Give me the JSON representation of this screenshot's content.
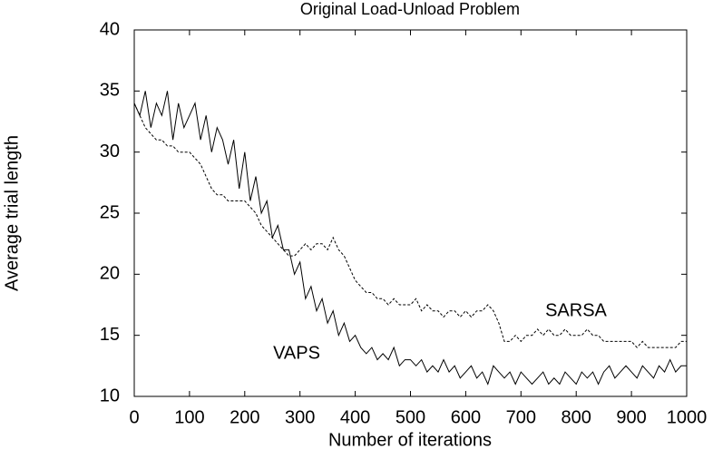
{
  "chart_data": {
    "type": "line",
    "title": "Original Load-Unload Problem",
    "x_label": "Number of iterations",
    "y_label": "Average trial length",
    "xlim": [
      0,
      1000
    ],
    "ylim": [
      10,
      40
    ],
    "xticks": [
      0,
      100,
      200,
      300,
      400,
      500,
      600,
      700,
      800,
      900,
      1000
    ],
    "yticks": [
      10,
      15,
      20,
      25,
      30,
      35,
      40
    ],
    "x": [
      0,
      10,
      20,
      30,
      40,
      50,
      60,
      70,
      80,
      90,
      100,
      110,
      120,
      130,
      140,
      150,
      160,
      170,
      180,
      190,
      200,
      210,
      220,
      230,
      240,
      250,
      260,
      270,
      280,
      290,
      300,
      310,
      320,
      330,
      340,
      350,
      360,
      370,
      380,
      390,
      400,
      410,
      420,
      430,
      440,
      450,
      460,
      470,
      480,
      490,
      500,
      510,
      520,
      530,
      540,
      550,
      560,
      570,
      580,
      590,
      600,
      610,
      620,
      630,
      640,
      650,
      660,
      670,
      680,
      690,
      700,
      710,
      720,
      730,
      740,
      750,
      760,
      770,
      780,
      790,
      800,
      810,
      820,
      830,
      840,
      850,
      860,
      870,
      880,
      890,
      900,
      910,
      920,
      930,
      940,
      950,
      960,
      970,
      980,
      990,
      1000
    ],
    "series": [
      {
        "name": "SARSA",
        "color": "#000000",
        "dash": "3 2",
        "values": [
          34,
          33,
          32,
          31.5,
          31,
          31,
          30.5,
          30.5,
          30,
          30,
          30,
          29.5,
          29,
          28,
          27,
          26.5,
          26.5,
          26,
          26,
          26,
          26,
          25.5,
          25,
          24,
          23.5,
          23,
          22.5,
          22,
          21.5,
          21.5,
          22,
          22.5,
          22,
          22.5,
          22.5,
          22,
          23,
          22,
          21.5,
          20.5,
          19.5,
          19,
          18.5,
          18.5,
          18,
          18,
          17.5,
          18,
          17.5,
          17.5,
          17.5,
          18,
          17,
          17.5,
          17,
          17,
          16.5,
          17,
          17,
          16.5,
          17,
          16.5,
          17,
          17,
          17.5,
          17,
          16,
          14.5,
          14.5,
          15,
          14.5,
          15,
          15,
          15.5,
          15,
          15.5,
          15,
          15,
          15.5,
          15,
          15,
          15,
          15.5,
          15,
          15,
          14.5,
          14.5,
          14.5,
          14.5,
          14.5,
          14.5,
          14,
          14.5,
          14,
          14,
          14,
          14,
          14,
          14,
          14.5,
          14.5
        ]
      },
      {
        "name": "VAPS",
        "color": "#000000",
        "dash": "none",
        "values": [
          34,
          33,
          35,
          32,
          34,
          33,
          35,
          31,
          34,
          32,
          33,
          34,
          31,
          33,
          30,
          32,
          31,
          29,
          31,
          27,
          30,
          26,
          28,
          25,
          26,
          23,
          24,
          22,
          22,
          20,
          21,
          18,
          19,
          17,
          18,
          16,
          17,
          15,
          16,
          14.5,
          15,
          14,
          13.5,
          14,
          13,
          13.5,
          13,
          14,
          12.5,
          13,
          13,
          12.5,
          13,
          12,
          12.5,
          12,
          13,
          12,
          12.5,
          11.5,
          12,
          12.5,
          11.5,
          12,
          11,
          12.5,
          12,
          11.5,
          12,
          11,
          12,
          11.5,
          11,
          11.5,
          12,
          11,
          11.5,
          11,
          12,
          11.5,
          11,
          12,
          11.5,
          12,
          11,
          12,
          12.5,
          11.5,
          12,
          12.5,
          12,
          11.5,
          12.5,
          12,
          11.5,
          12.5,
          12,
          13,
          12,
          12.5,
          12.5
        ]
      }
    ]
  }
}
